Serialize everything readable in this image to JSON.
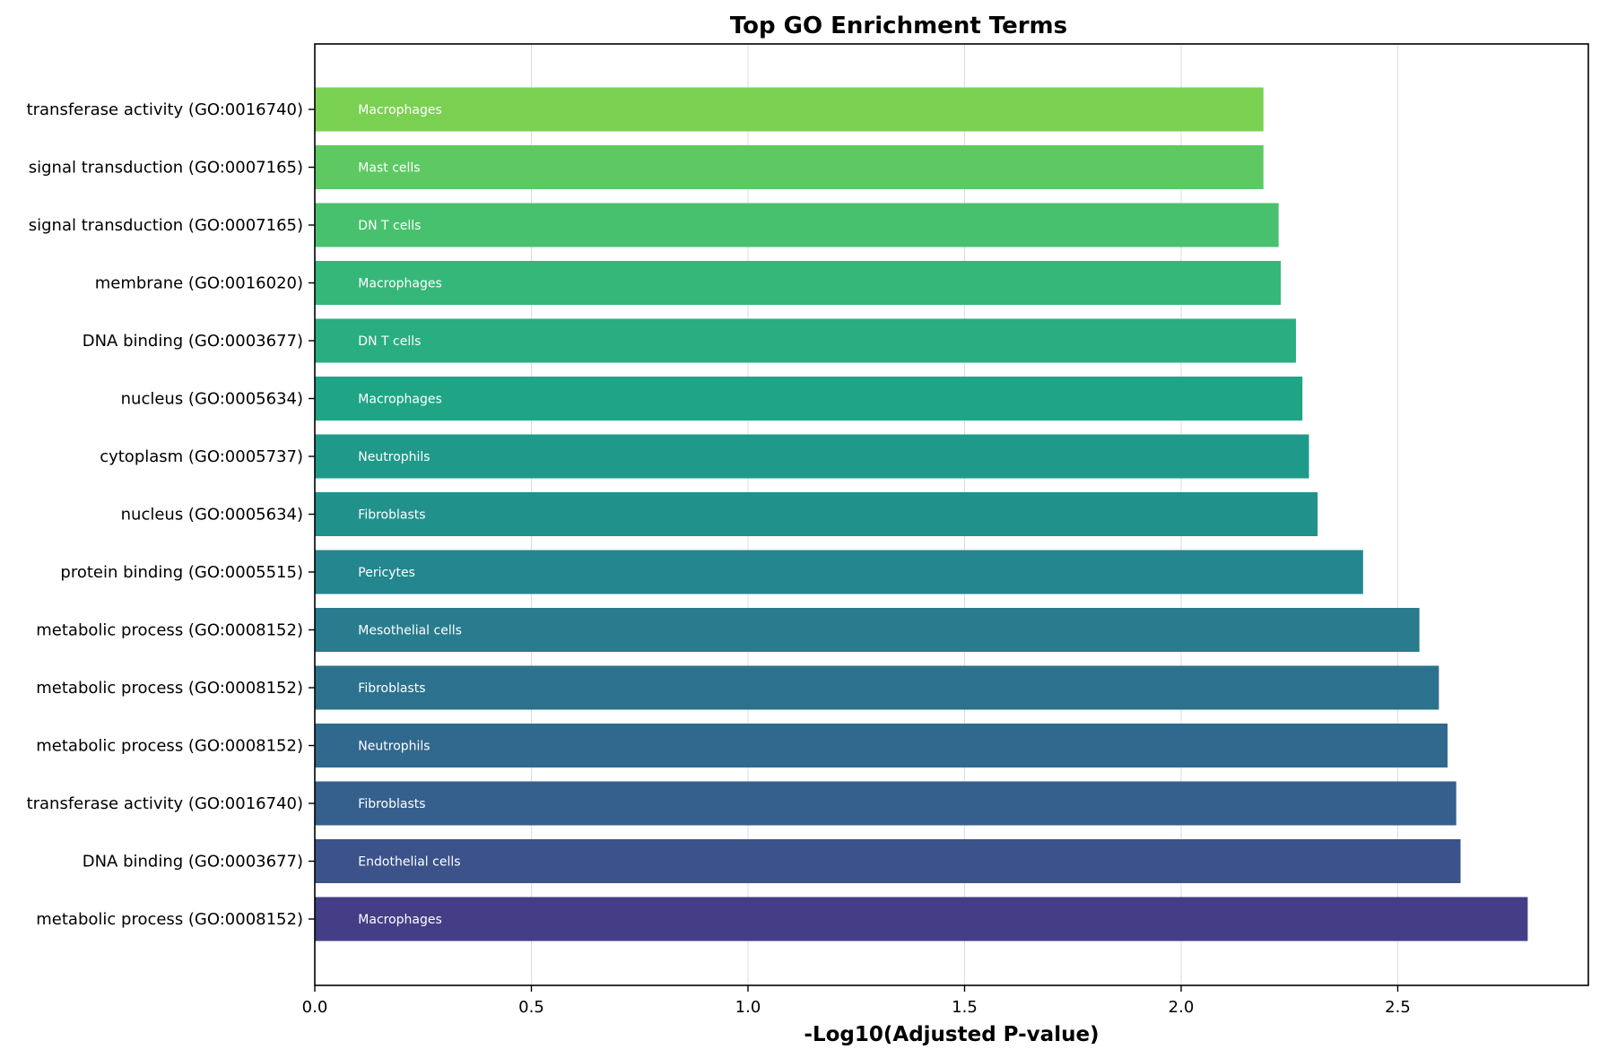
{
  "chart_data": {
    "type": "bar",
    "orientation": "horizontal",
    "title": "Top GO Enrichment Terms",
    "xlabel": "-Log10(Adjusted P-value)",
    "ylabel": "",
    "xlim": [
      0,
      2.94
    ],
    "xticks": [
      "0.0",
      "0.5",
      "1.0",
      "1.5",
      "2.0",
      "2.5"
    ],
    "xtick_values": [
      0,
      0.5,
      1.0,
      1.5,
      2.0,
      2.5
    ],
    "grid": "vertical",
    "bar_order": "top-to-bottom",
    "bars": [
      {
        "term": "transferase activity (GO:0016740)",
        "cell_type": "Macrophages",
        "value": 2.19,
        "color": "#7ad151"
      },
      {
        "term": "signal transduction (GO:0007165)",
        "cell_type": "Mast cells",
        "value": 2.19,
        "color": "#5ec962"
      },
      {
        "term": "signal transduction (GO:0007165)",
        "cell_type": "DN T cells",
        "value": 2.225,
        "color": "#48c16e"
      },
      {
        "term": "membrane (GO:0016020)",
        "cell_type": "Macrophages",
        "value": 2.23,
        "color": "#35b779"
      },
      {
        "term": "DNA binding (GO:0003677)",
        "cell_type": "DN T cells",
        "value": 2.265,
        "color": "#28ae80"
      },
      {
        "term": "nucleus (GO:0005634)",
        "cell_type": "Macrophages",
        "value": 2.28,
        "color": "#20a486"
      },
      {
        "term": "cytoplasm (GO:0005737)",
        "cell_type": "Neutrophils",
        "value": 2.295,
        "color": "#1f9a8a"
      },
      {
        "term": "nucleus (GO:0005634)",
        "cell_type": "Fibroblasts",
        "value": 2.315,
        "color": "#21918c"
      },
      {
        "term": "protein binding (GO:0005515)",
        "cell_type": "Pericytes",
        "value": 2.42,
        "color": "#24868e"
      },
      {
        "term": "metabolic process (GO:0008152)",
        "cell_type": "Mesothelial cells",
        "value": 2.55,
        "color": "#287c8e"
      },
      {
        "term": "metabolic process (GO:0008152)",
        "cell_type": "Fibroblasts",
        "value": 2.595,
        "color": "#2c728e"
      },
      {
        "term": "metabolic process (GO:0008152)",
        "cell_type": "Neutrophils",
        "value": 2.615,
        "color": "#31688e"
      },
      {
        "term": "transferase activity (GO:0016740)",
        "cell_type": "Fibroblasts",
        "value": 2.635,
        "color": "#355f8d"
      },
      {
        "term": "DNA binding (GO:0003677)",
        "cell_type": "Endothelial cells",
        "value": 2.645,
        "color": "#3b528b"
      },
      {
        "term": "metabolic process (GO:0008152)",
        "cell_type": "Macrophages",
        "value": 2.8,
        "color": "#433e85"
      }
    ]
  }
}
